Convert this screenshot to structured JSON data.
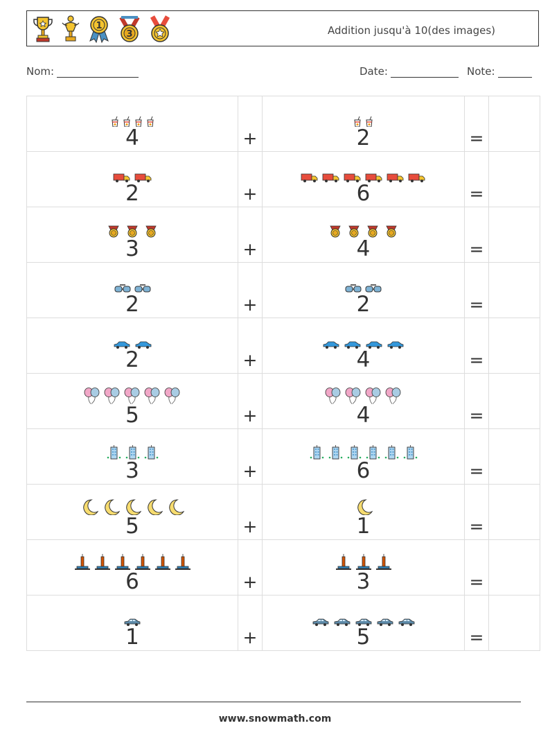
{
  "header": {
    "title": "Addition jusqu'à 10(des images)",
    "trophies": [
      "trophy-cup-icon",
      "trophy-figure-icon",
      "medal-ribbon-1-icon",
      "medal-3-icon",
      "medal-star-icon"
    ]
  },
  "form": {
    "name_label": "Nom:",
    "date_label": "Date:",
    "grade_label": "Note:"
  },
  "rows": [
    {
      "a": "4",
      "a_icon": "drink",
      "b": "2",
      "b_icon": "drink",
      "plus": "+",
      "equals": "="
    },
    {
      "a": "2",
      "a_icon": "truck",
      "b": "6",
      "b_icon": "truck",
      "plus": "+",
      "equals": "="
    },
    {
      "a": "3",
      "a_icon": "medal",
      "b": "4",
      "b_icon": "medal",
      "plus": "+",
      "equals": "="
    },
    {
      "a": "2",
      "a_icon": "goggles",
      "b": "2",
      "b_icon": "goggles",
      "plus": "+",
      "equals": "="
    },
    {
      "a": "2",
      "a_icon": "car",
      "b": "4",
      "b_icon": "car",
      "plus": "+",
      "equals": "="
    },
    {
      "a": "5",
      "a_icon": "balloons",
      "b": "4",
      "b_icon": "balloons",
      "plus": "+",
      "equals": "="
    },
    {
      "a": "3",
      "a_icon": "building",
      "b": "6",
      "b_icon": "building",
      "plus": "+",
      "equals": "="
    },
    {
      "a": "5",
      "a_icon": "moon",
      "b": "1",
      "b_icon": "moon",
      "plus": "+",
      "equals": "="
    },
    {
      "a": "6",
      "a_icon": "candle",
      "b": "3",
      "b_icon": "candle",
      "plus": "+",
      "equals": "="
    },
    {
      "a": "1",
      "a_icon": "sedan",
      "b": "5",
      "b_icon": "sedan",
      "plus": "+",
      "equals": "="
    }
  ],
  "footer": {
    "url": "www.snowmath.com"
  }
}
